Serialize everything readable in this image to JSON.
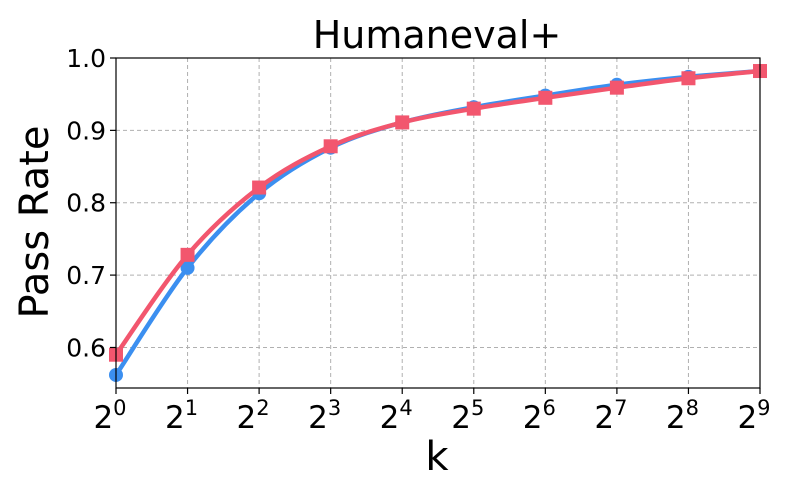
{
  "chart_data": {
    "type": "line",
    "title": "Humaneval+",
    "xlabel": "k",
    "ylabel": "Pass Rate",
    "x_base": "2",
    "x": [
      0,
      1,
      2,
      3,
      4,
      5,
      6,
      7,
      8,
      9
    ],
    "x_tick_labels": [
      {
        "base": "2",
        "exp": "0"
      },
      {
        "base": "2",
        "exp": "1"
      },
      {
        "base": "2",
        "exp": "2"
      },
      {
        "base": "2",
        "exp": "3"
      },
      {
        "base": "2",
        "exp": "4"
      },
      {
        "base": "2",
        "exp": "5"
      },
      {
        "base": "2",
        "exp": "6"
      },
      {
        "base": "2",
        "exp": "7"
      },
      {
        "base": "2",
        "exp": "8"
      },
      {
        "base": "2",
        "exp": "9"
      }
    ],
    "y_ticks": [
      0.6,
      0.7,
      0.8,
      0.9,
      1.0
    ],
    "y_tick_labels": [
      "0.6",
      "0.7",
      "0.8",
      "0.9",
      "1.0"
    ],
    "xlim": [
      0,
      9
    ],
    "ylim": [
      0.544,
      1.0
    ],
    "grid": true,
    "series": [
      {
        "color": "#3b8ff0",
        "marker": "circle",
        "values": [
          0.562,
          0.71,
          0.813,
          0.876,
          0.911,
          0.932,
          0.948,
          0.963,
          0.974,
          0.982
        ]
      },
      {
        "color": "#f2566e",
        "marker": "square",
        "values": [
          0.59,
          0.728,
          0.821,
          0.878,
          0.911,
          0.93,
          0.945,
          0.959,
          0.972,
          0.982
        ]
      }
    ]
  }
}
